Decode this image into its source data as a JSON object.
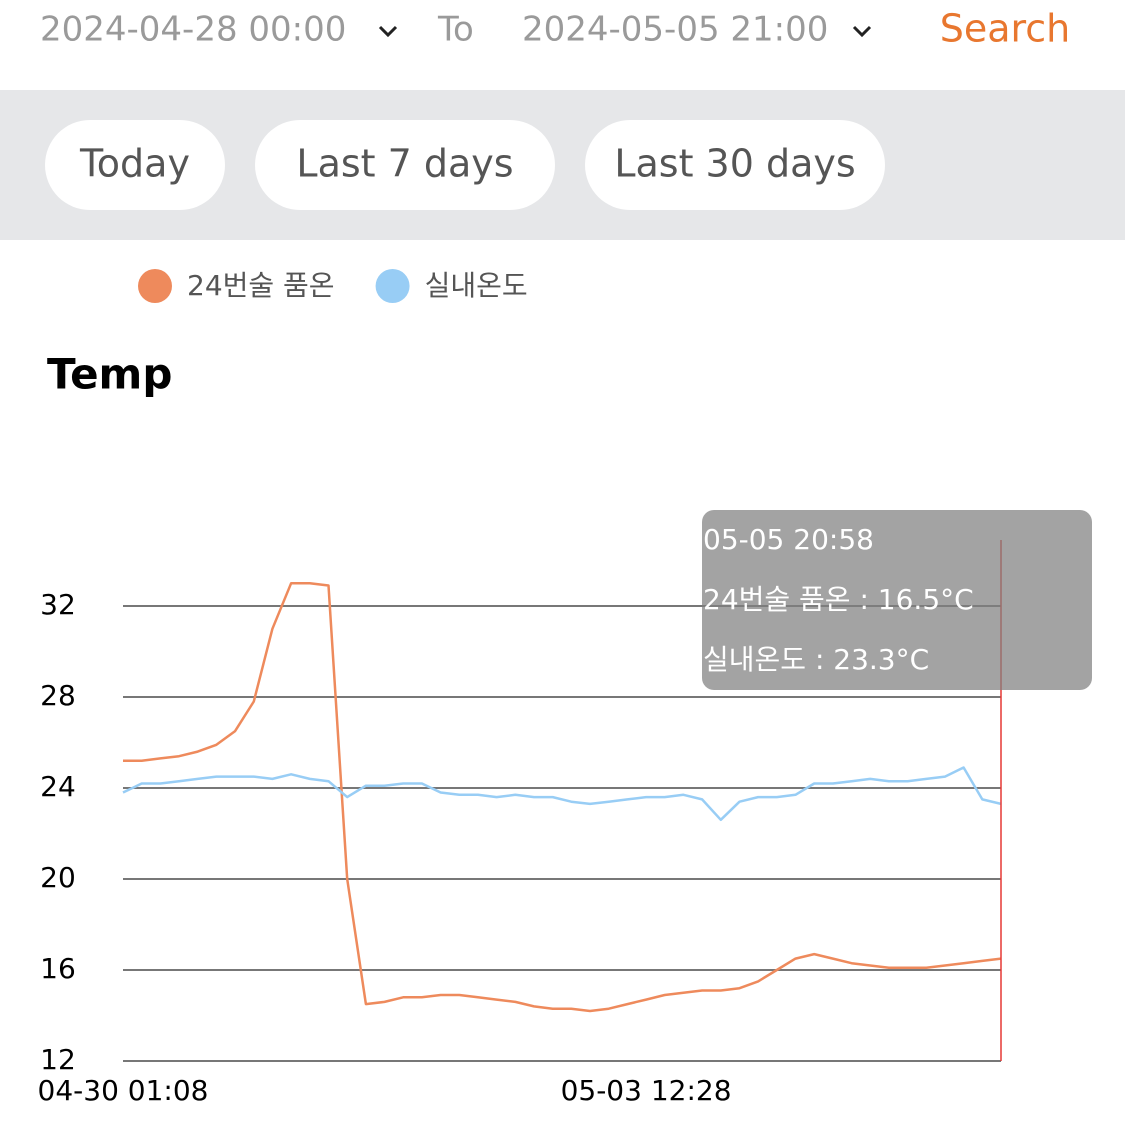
{
  "header": {
    "start": "2024-04-28 00:00",
    "to": "To",
    "end": "2024-05-05 21:00",
    "search": "Search"
  },
  "filters": [
    "Today",
    "Last 7 days",
    "Last 30 days"
  ],
  "chart_data": {
    "type": "line",
    "title": "Temp",
    "categories": [
      "04-30 01:08",
      null,
      null,
      null,
      null,
      null,
      null,
      null,
      null,
      null,
      null,
      null,
      null,
      null,
      null,
      null,
      null,
      null,
      null,
      null,
      null,
      null,
      null,
      null,
      null,
      null,
      null,
      null,
      "05-03 12:28",
      null,
      null,
      null,
      null,
      null,
      null,
      null,
      null,
      null,
      null,
      null,
      null,
      null,
      null,
      null,
      null,
      null,
      null,
      null
    ],
    "series": [
      {
        "name": "24번술 품온",
        "color": "#ee8a5c",
        "values": [
          25.2,
          25.2,
          25.3,
          25.4,
          25.6,
          25.9,
          26.5,
          27.8,
          31.0,
          33.0,
          33.0,
          32.9,
          20.0,
          14.5,
          14.6,
          14.8,
          14.8,
          14.9,
          14.9,
          14.8,
          14.7,
          14.6,
          14.4,
          14.3,
          14.3,
          14.2,
          14.3,
          14.5,
          14.7,
          14.9,
          15.0,
          15.1,
          15.1,
          15.2,
          15.5,
          16.0,
          16.5,
          16.7,
          16.5,
          16.3,
          16.2,
          16.1,
          16.1,
          16.1,
          16.2,
          16.3,
          16.4,
          16.5
        ]
      },
      {
        "name": "실내온도",
        "color": "#98cdf5",
        "values": [
          23.8,
          24.2,
          24.2,
          24.3,
          24.4,
          24.5,
          24.5,
          24.5,
          24.4,
          24.6,
          24.4,
          24.3,
          23.6,
          24.1,
          24.1,
          24.2,
          24.2,
          23.8,
          23.7,
          23.7,
          23.6,
          23.7,
          23.6,
          23.6,
          23.4,
          23.3,
          23.4,
          23.5,
          23.6,
          23.6,
          23.7,
          23.5,
          22.6,
          23.4,
          23.6,
          23.6,
          23.7,
          24.2,
          24.2,
          24.3,
          24.4,
          24.3,
          24.3,
          24.4,
          24.5,
          24.9,
          23.5,
          23.3
        ]
      }
    ],
    "ylim": [
      12,
      35
    ],
    "yticks": [
      12,
      16,
      20,
      24,
      28,
      32
    ],
    "grid": true,
    "tooltip": {
      "title": "05-05 20:58",
      "lines": [
        "24번술 품온 : 16.5°C",
        "실내온도 : 23.3°C"
      ]
    }
  }
}
